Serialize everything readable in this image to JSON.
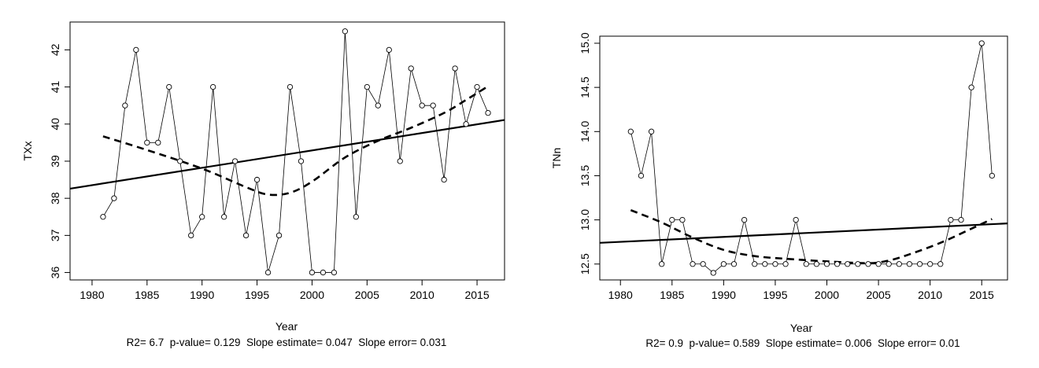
{
  "chart_data": [
    {
      "type": "line",
      "ylabel": "TXx",
      "xlabel": "Year",
      "xlim": [
        1978,
        2017.5
      ],
      "ylim": [
        35.8,
        42.75
      ],
      "xticks": [
        1980,
        1985,
        1990,
        1995,
        2000,
        2005,
        2010,
        2015
      ],
      "yticks": [
        36,
        37,
        38,
        39,
        40,
        41,
        42
      ],
      "x": [
        1981,
        1982,
        1983,
        1984,
        1985,
        1986,
        1987,
        1988,
        1989,
        1990,
        1991,
        1992,
        1993,
        1994,
        1995,
        1996,
        1997,
        1998,
        1999,
        2000,
        2001,
        2002,
        2003,
        2004,
        2005,
        2006,
        2007,
        2008,
        2009,
        2010,
        2011,
        2012,
        2013,
        2014,
        2015,
        2016
      ],
      "values": [
        37.5,
        38,
        40.5,
        42,
        39.5,
        39.5,
        41,
        39,
        37,
        37.5,
        41,
        37.5,
        39,
        37,
        38.5,
        36,
        37,
        41,
        39,
        36,
        36,
        36,
        42.5,
        37.5,
        41,
        40.5,
        42,
        39,
        41.5,
        40.5,
        40.5,
        38.5,
        41.5,
        40,
        41,
        40.3
      ],
      "trend_line": {
        "x": [
          1978,
          2017.5
        ],
        "y": [
          38.26,
          40.11
        ]
      },
      "smooth_line": {
        "x": [
          1981,
          1985,
          1990,
          1994,
          1996,
          1998,
          2000,
          2003,
          2006,
          2009,
          2012,
          2014,
          2016
        ],
        "y": [
          39.67,
          39.3,
          38.8,
          38.3,
          38.1,
          38.15,
          38.45,
          39.1,
          39.55,
          39.9,
          40.3,
          40.65,
          41.02
        ]
      },
      "stats": {
        "r2": "R2= 6.7",
        "p_value": "p-value= 0.129",
        "slope_estimate": "Slope estimate= 0.047",
        "slope_error": "Slope error= 0.031"
      }
    },
    {
      "type": "line",
      "ylabel": "TNn",
      "xlabel": "Year",
      "xlim": [
        1978,
        2017.5
      ],
      "ylim": [
        12.32,
        15.08
      ],
      "xticks": [
        1980,
        1985,
        1990,
        1995,
        2000,
        2005,
        2010,
        2015
      ],
      "yticks": [
        12.5,
        13.0,
        13.5,
        14.0,
        14.5,
        15.0
      ],
      "x": [
        1981,
        1982,
        1983,
        1984,
        1985,
        1986,
        1987,
        1988,
        1989,
        1990,
        1991,
        1992,
        1993,
        1994,
        1995,
        1996,
        1997,
        1998,
        1999,
        2000,
        2001,
        2002,
        2003,
        2004,
        2005,
        2006,
        2007,
        2008,
        2009,
        2010,
        2011,
        2012,
        2013,
        2014,
        2015,
        2016
      ],
      "values": [
        14,
        13.5,
        14,
        12.5,
        13,
        13,
        12.5,
        12.5,
        12.4,
        12.5,
        12.5,
        13,
        12.5,
        12.5,
        12.5,
        12.5,
        13,
        12.5,
        12.5,
        12.5,
        12.5,
        12.5,
        12.5,
        12.5,
        12.5,
        12.5,
        12.5,
        12.5,
        12.5,
        12.5,
        12.5,
        13,
        13,
        14.5,
        15,
        13.5
      ],
      "trend_line": {
        "x": [
          1978,
          2017.5
        ],
        "y": [
          12.74,
          12.96
        ]
      },
      "smooth_line": {
        "x": [
          1981,
          1984,
          1987,
          1990,
          1993,
          1996,
          2000,
          2004,
          2006,
          2008,
          2011,
          2014,
          2016
        ],
        "y": [
          13.11,
          12.97,
          12.8,
          12.66,
          12.59,
          12.56,
          12.53,
          12.51,
          12.54,
          12.61,
          12.74,
          12.9,
          13.01
        ]
      },
      "stats": {
        "r2": "R2= 0.9",
        "p_value": "p-value= 0.589",
        "slope_estimate": "Slope estimate= 0.006",
        "slope_error": "Slope error= 0.01"
      }
    }
  ]
}
